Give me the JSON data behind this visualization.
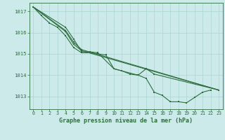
{
  "background_color": "#cdeaea",
  "grid_color": "#aad4d4",
  "line_color": "#2d6e3e",
  "title": "Graphe pression niveau de la mer (hPa)",
  "xlim": [
    -0.5,
    23.5
  ],
  "ylim": [
    1012.4,
    1017.4
  ],
  "yticks": [
    1013,
    1014,
    1015,
    1016,
    1017
  ],
  "xticks": [
    0,
    1,
    2,
    3,
    4,
    5,
    6,
    7,
    8,
    9,
    10,
    11,
    12,
    13,
    14,
    15,
    16,
    17,
    18,
    19,
    20,
    21,
    22,
    23
  ],
  "series": [
    {
      "x": [
        0,
        1,
        2,
        3,
        4,
        5,
        6,
        7,
        8,
        9,
        10,
        11,
        12,
        13,
        14,
        15,
        16,
        17,
        18,
        19,
        20,
        21,
        22
      ],
      "y": [
        1017.2,
        1016.8,
        1016.45,
        1016.25,
        1015.85,
        1015.3,
        1015.05,
        1015.05,
        1015.0,
        1014.95,
        1014.3,
        1014.2,
        1014.05,
        1014.0,
        1013.85,
        1013.2,
        1013.05,
        1012.75,
        1012.75,
        1012.7,
        1012.95,
        1013.2,
        1013.3
      ],
      "markers": true
    },
    {
      "x": [
        0,
        4,
        5,
        6,
        7,
        8,
        10,
        13,
        14,
        15,
        23
      ],
      "y": [
        1017.2,
        1016.25,
        1015.7,
        1015.1,
        1015.1,
        1015.05,
        1014.3,
        1014.0,
        1014.3,
        1014.05,
        1013.3
      ],
      "markers": true
    },
    {
      "x": [
        0,
        4,
        5,
        6,
        23
      ],
      "y": [
        1017.2,
        1016.1,
        1015.55,
        1015.2,
        1013.3
      ],
      "markers": true
    },
    {
      "x": [
        0,
        4,
        5,
        6,
        23
      ],
      "y": [
        1017.2,
        1016.05,
        1015.45,
        1015.15,
        1013.3
      ],
      "markers": true
    }
  ]
}
